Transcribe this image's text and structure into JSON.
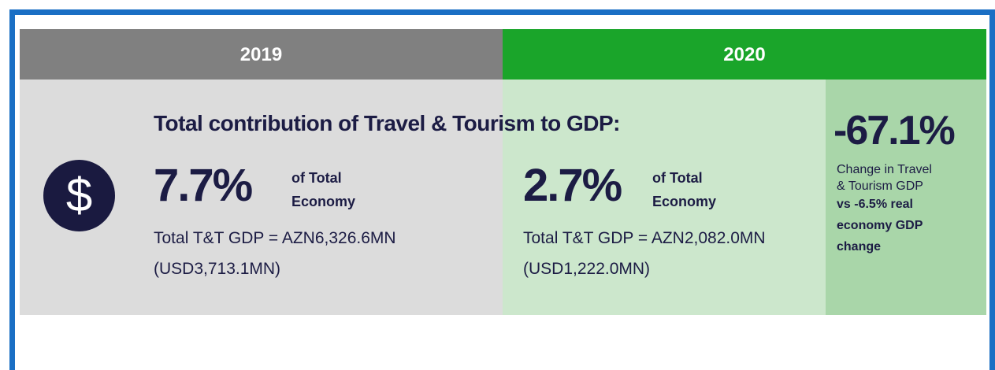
{
  "header": {
    "year_left": "2019",
    "year_right": "2020"
  },
  "icon": "$",
  "title": "Total contribution of Travel & Tourism to GDP:",
  "left": {
    "share": "7.7%",
    "share_label": [
      "of Total",
      "Economy"
    ],
    "gdp": "Total T&T GDP = AZN6,326.6MN",
    "usd": "(USD3,713.1MN)"
  },
  "right": {
    "share": "2.7%",
    "share_label": [
      "of Total",
      "Economy"
    ],
    "gdp": "Total T&T GDP = AZN2,082.0MN",
    "usd": "(USD1,222.0MN)"
  },
  "change": {
    "value": "-67.1%",
    "lines": [
      "Change in Travel",
      "& Tourism GDP"
    ],
    "bold_lines": [
      "vs -6.5% real",
      "economy GDP",
      "change"
    ]
  }
}
